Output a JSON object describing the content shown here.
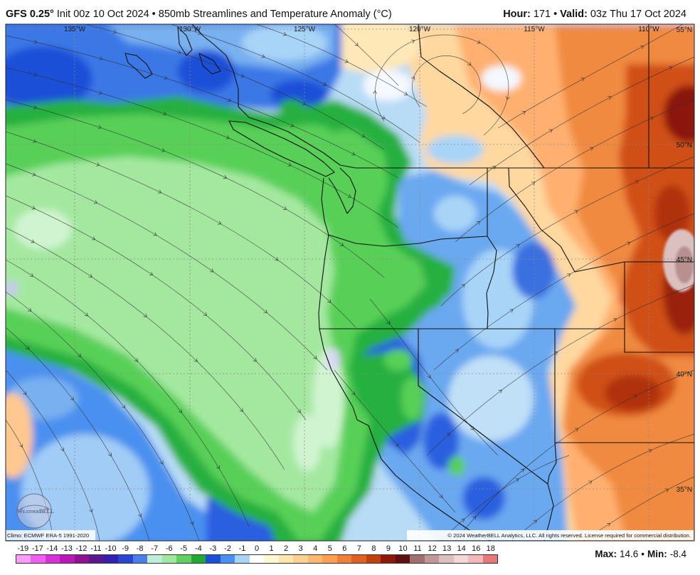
{
  "header": {
    "model": "GFS 0.25°",
    "description": "Init 00z 10 Oct 2024 • 850mb Streamlines and Temperature Anomaly (°C)",
    "hour_label": "Hour:",
    "hour": "171",
    "separator": "•",
    "valid_label": "Valid:",
    "valid": "03z Thu 17 Oct 2024"
  },
  "map": {
    "longitude_labels": [
      "135°W",
      "130°W",
      "125°W",
      "120°W",
      "115°W",
      "110°W"
    ],
    "latitude_labels": [
      "55°N",
      "50°N",
      "45°N",
      "40°N",
      "35°N"
    ],
    "climo": "Climo: ECMWF ERA-5 1991-2020",
    "copyright": "© 2024 WeatherBELL Analytics, LLC. All rights reserved. License required for commercial distribution.",
    "logo_text": "WeatherBELL"
  },
  "legend": {
    "labels": [
      "-19",
      "-17",
      "-14",
      "-13",
      "-12",
      "-11",
      "-10",
      "-9",
      "-8",
      "-7",
      "-6",
      "-5",
      "-4",
      "-3",
      "-2",
      "-1",
      "0",
      "1",
      "2",
      "3",
      "4",
      "5",
      "6",
      "7",
      "8",
      "9",
      "10",
      "11",
      "12",
      "13",
      "14",
      "16",
      "18"
    ],
    "colors": [
      "#ff9cff",
      "#f060f0",
      "#d830d8",
      "#b818b8",
      "#901090",
      "#5a1890",
      "#3420b0",
      "#2846d2",
      "#4c7ee8",
      "#c0ecd8",
      "#a0e8a0",
      "#60d060",
      "#20a830",
      "#1a50d8",
      "#4a90f0",
      "#a8d4f8",
      "#ffffff",
      "#fff8d0",
      "#ffe8b0",
      "#ffd090",
      "#ffb870",
      "#ffa050",
      "#f08038",
      "#e06020",
      "#c04010",
      "#901808",
      "#601010",
      "#a07070",
      "#c09898",
      "#dcc0c0",
      "#f0d8d8",
      "#f4b8b8",
      "#e87878"
    ]
  },
  "stats": {
    "max_label": "Max:",
    "max": "14.6",
    "separator": "•",
    "min_label": "Min:",
    "min": "-8.4"
  }
}
